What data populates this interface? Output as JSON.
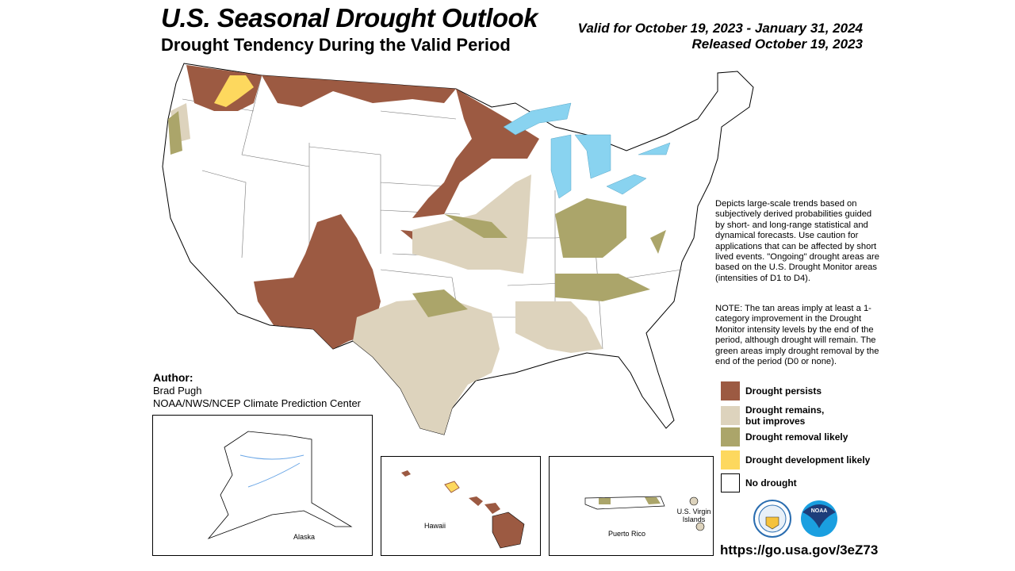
{
  "header": {
    "title": "U.S. Seasonal Drought Outlook",
    "subtitle": "Drought Tendency During the Valid Period",
    "valid": "Valid for October 19, 2023 - January 31, 2024",
    "released": "Released October 19, 2023"
  },
  "description": "Depicts large-scale trends based on subjectively derived probabilities guided by short- and long-range statistical and dynamical forecasts. Use caution for applications that can be affected by short lived events. \"Ongoing\" drought areas are based on the U.S. Drought Monitor areas (intensities of D1 to D4).",
  "note": "NOTE: The tan areas imply at least a 1-category improvement in the Drought Monitor intensity levels by the end of the period, although drought will remain. The green areas imply drought removal by the end of the period (D0 or none).",
  "author": {
    "label": "Author:",
    "name": "Brad Pugh",
    "org": "NOAA/NWS/NCEP Climate Prediction Center"
  },
  "legend": [
    {
      "label": "Drought persists",
      "color": "#9c5a42"
    },
    {
      "label": "Drought remains, but improves",
      "color": "#ddd3bd"
    },
    {
      "label": "Drought removal likely",
      "color": "#aba56a"
    },
    {
      "label": "Drought development likely",
      "color": "#fdd85e"
    },
    {
      "label": "No drought",
      "color": "#ffffff"
    }
  ],
  "insets": {
    "alaska": "Alaska",
    "hawaii": "Hawaii",
    "puerto_rico": "Puerto Rico",
    "virgin_islands": "U.S. Virgin Islands"
  },
  "logos": {
    "commerce": "Department of Commerce seal",
    "noaa": "NOAA"
  },
  "url": "https://go.usa.gov/3eZ73"
}
